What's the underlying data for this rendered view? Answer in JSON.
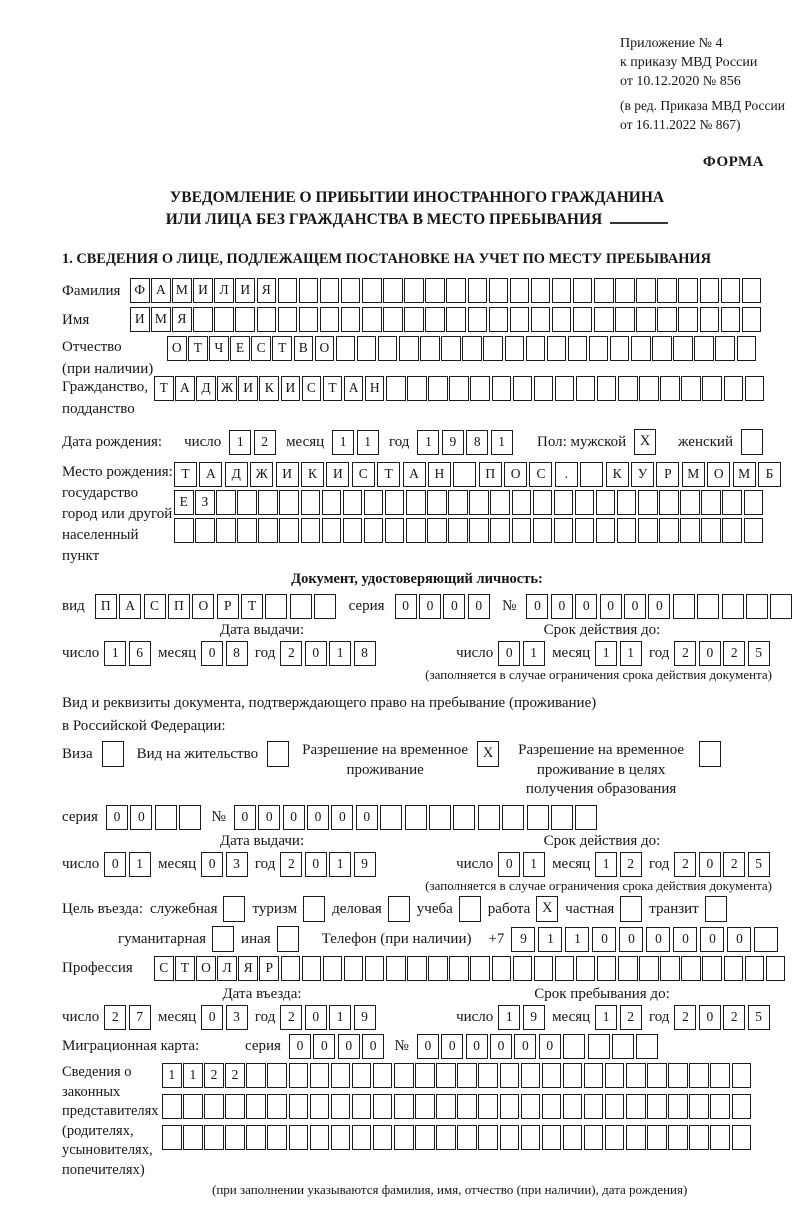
{
  "box_border_color": "#1c1c1c",
  "header": {
    "lines": [
      "Приложение № 4",
      "к приказу МВД России",
      "от 10.12.2020 № 856"
    ],
    "amendment_lines": [
      "(в ред. Приказа МВД России",
      "от 16.11.2022 № 867)"
    ],
    "form_label": "ФОРМА"
  },
  "title": {
    "line1": "УВЕДОМЛЕНИЕ О ПРИБЫТИИ ИНОСТРАННОГО ГРАЖДАНИНА",
    "line2": "ИЛИ ЛИЦА БЕЗ ГРАЖДАНСТВА В МЕСТО ПРЕБЫВАНИЯ"
  },
  "section1_heading": "1. СВЕДЕНИЯ О ЛИЦЕ, ПОДЛЕЖАЩЕМ ПОСТАНОВКЕ НА УЧЕТ ПО МЕСТУ ПРЕБЫВАНИЯ",
  "labels": {
    "day": "число",
    "month": "месяц",
    "year": "год"
  },
  "surname": {
    "label": "Фамилия",
    "value": "ФАМИЛИЯ",
    "length": 30
  },
  "given_name": {
    "label": "Имя",
    "value": "ИМЯ",
    "length": 30
  },
  "patronymic": {
    "label": "Отчество",
    "label2": "(при наличии)",
    "value": "ОТЧЕСТВО",
    "length": 28
  },
  "citizenship": {
    "label": "Гражданство,",
    "label2": "подданство",
    "value": "ТАДЖИКИСТАН",
    "length": 29
  },
  "birth": {
    "date_label": "Дата рождения:",
    "day": "12",
    "month": "11",
    "year": "1981",
    "sex_label": "Пол: мужской",
    "male_checked": "X",
    "female_label": "женский",
    "female_checked": ""
  },
  "birth_place": {
    "label1": "Место рождения:",
    "label2": "государство",
    "label3": "город или другой",
    "label4": "населенный пункт",
    "row1": {
      "value": "ТАДЖИКИСТАН ПОС. КУРМОМБ",
      "length": 24
    },
    "row2": {
      "value": "ЕЗ",
      "length": 28
    },
    "row3": {
      "value": "",
      "length": 28
    }
  },
  "identity_doc": {
    "heading": "Документ, удостоверяющий личность:",
    "kind_label": "вид",
    "kind": {
      "value": "ПАСПОРТ",
      "length": 10
    },
    "series_label": "серия",
    "series": {
      "value": "0000",
      "length": 4
    },
    "number_label": "№",
    "number": {
      "value": "000000",
      "length": 11
    },
    "issue_heading": "Дата выдачи:",
    "issue_day": "16",
    "issue_month": "08",
    "issue_year": "2018",
    "valid_heading": "Срок действия до:",
    "valid_day": "01",
    "valid_month": "11",
    "valid_year": "2025",
    "note": "(заполняется в случае ограничения срока действия документа)"
  },
  "residence_doc": {
    "intro1": "Вид и реквизиты документа, подтверждающего право на пребывание (проживание)",
    "intro2": "в Российской Федерации:",
    "options": [
      {
        "label": "Виза",
        "checked": ""
      },
      {
        "label": "Вид на жительство",
        "checked": ""
      },
      {
        "label": "Разрешение на временное проживание",
        "checked": "X"
      },
      {
        "label": "Разрешение на временное проживание в целях получения образования",
        "checked": ""
      }
    ],
    "series_label": "серия",
    "series": {
      "value": "00",
      "length": 4
    },
    "number_label": "№",
    "number": {
      "value": "000000",
      "length": 15
    },
    "issue_heading": "Дата выдачи:",
    "issue_day": "01",
    "issue_month": "03",
    "issue_year": "2019",
    "valid_heading": "Срок действия до:",
    "valid_day": "01",
    "valid_month": "12",
    "valid_year": "2025",
    "note": "(заполняется в случае ограничения срока действия документа)"
  },
  "visit_purpose": {
    "label": "Цель въезда:",
    "row1": [
      {
        "label": "служебная",
        "checked": ""
      },
      {
        "label": "туризм",
        "checked": ""
      },
      {
        "label": "деловая",
        "checked": ""
      },
      {
        "label": "учеба",
        "checked": ""
      },
      {
        "label": "работа",
        "checked": "X"
      },
      {
        "label": "частная",
        "checked": ""
      },
      {
        "label": "транзит",
        "checked": ""
      }
    ],
    "row2": [
      {
        "label": "гуманитарная",
        "checked": ""
      },
      {
        "label": "иная",
        "checked": ""
      }
    ],
    "phone_label": "Телефон (при наличии)",
    "phone_prefix": "+7",
    "phone": {
      "value": "911000000",
      "length": 10
    }
  },
  "profession": {
    "label": "Профессия",
    "value": "СТОЛЯР",
    "length": 30
  },
  "entry": {
    "date_heading": "Дата въезда:",
    "day": "27",
    "month": "03",
    "year": "2019",
    "stay_heading": "Срок пребывания до:",
    "stay_day": "19",
    "stay_month": "12",
    "stay_year": "2025"
  },
  "migration_card": {
    "label": "Миграционная карта:",
    "series_label": "серия",
    "series": {
      "value": "0000",
      "length": 4
    },
    "number_label": "№",
    "number": {
      "value": "000000",
      "length": 10
    }
  },
  "representatives": {
    "label_lines": [
      "Сведения о",
      "законных",
      "представителях",
      "(родителях,",
      "усыновителях,",
      "попечителях)"
    ],
    "rows": [
      {
        "value": "1122",
        "length": 28
      },
      {
        "value": "",
        "length": 28
      },
      {
        "value": "",
        "length": 28
      }
    ],
    "note": "(при заполнении указываются фамилия, имя, отчество (при наличии), дата рождения)"
  }
}
